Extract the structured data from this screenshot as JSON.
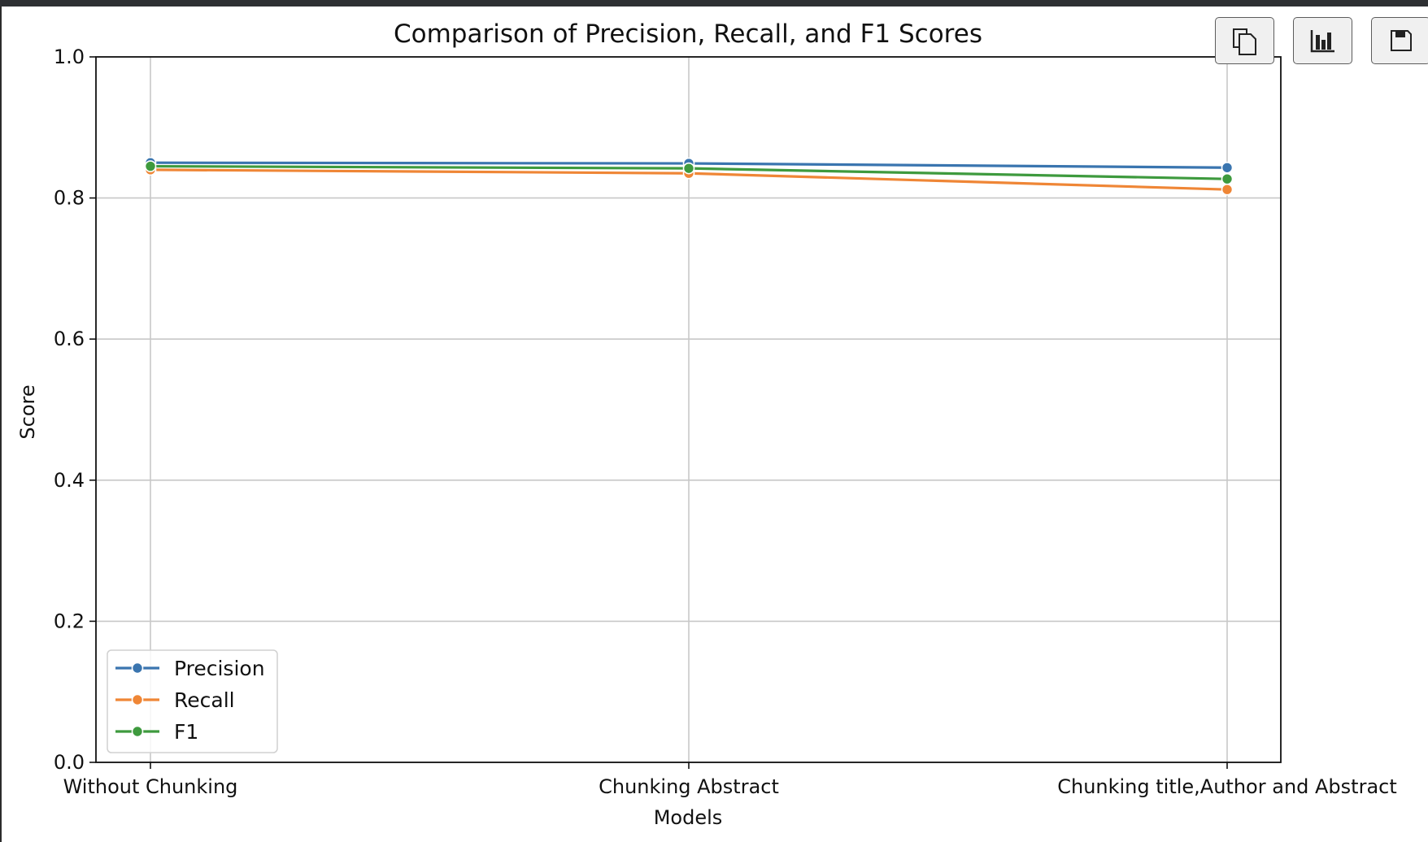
{
  "toolbar": {
    "buttons": [
      {
        "name": "copy-button",
        "icon": "copy-icon"
      },
      {
        "name": "chart-button",
        "icon": "bar-chart-icon"
      },
      {
        "name": "save-button",
        "icon": "save-icon"
      }
    ]
  },
  "chart_data": {
    "type": "line",
    "title": "Comparison of Precision, Recall, and F1 Scores",
    "xlabel": "Models",
    "ylabel": "Score",
    "categories": [
      "Without Chunking",
      "Chunking Abstract",
      "Chunking title,Author and Abstract"
    ],
    "ylim": [
      0.0,
      1.0
    ],
    "yticks": [
      "0.0",
      "0.2",
      "0.4",
      "0.6",
      "0.8",
      "1.0"
    ],
    "grid": true,
    "legend_position": "lower-left",
    "series": [
      {
        "name": "Precision",
        "color": "#3a75af",
        "values": [
          0.85,
          0.849,
          0.843
        ]
      },
      {
        "name": "Recall",
        "color": "#ef8636",
        "values": [
          0.84,
          0.835,
          0.812
        ]
      },
      {
        "name": "F1",
        "color": "#3e9a3e",
        "values": [
          0.845,
          0.842,
          0.827
        ]
      }
    ]
  }
}
